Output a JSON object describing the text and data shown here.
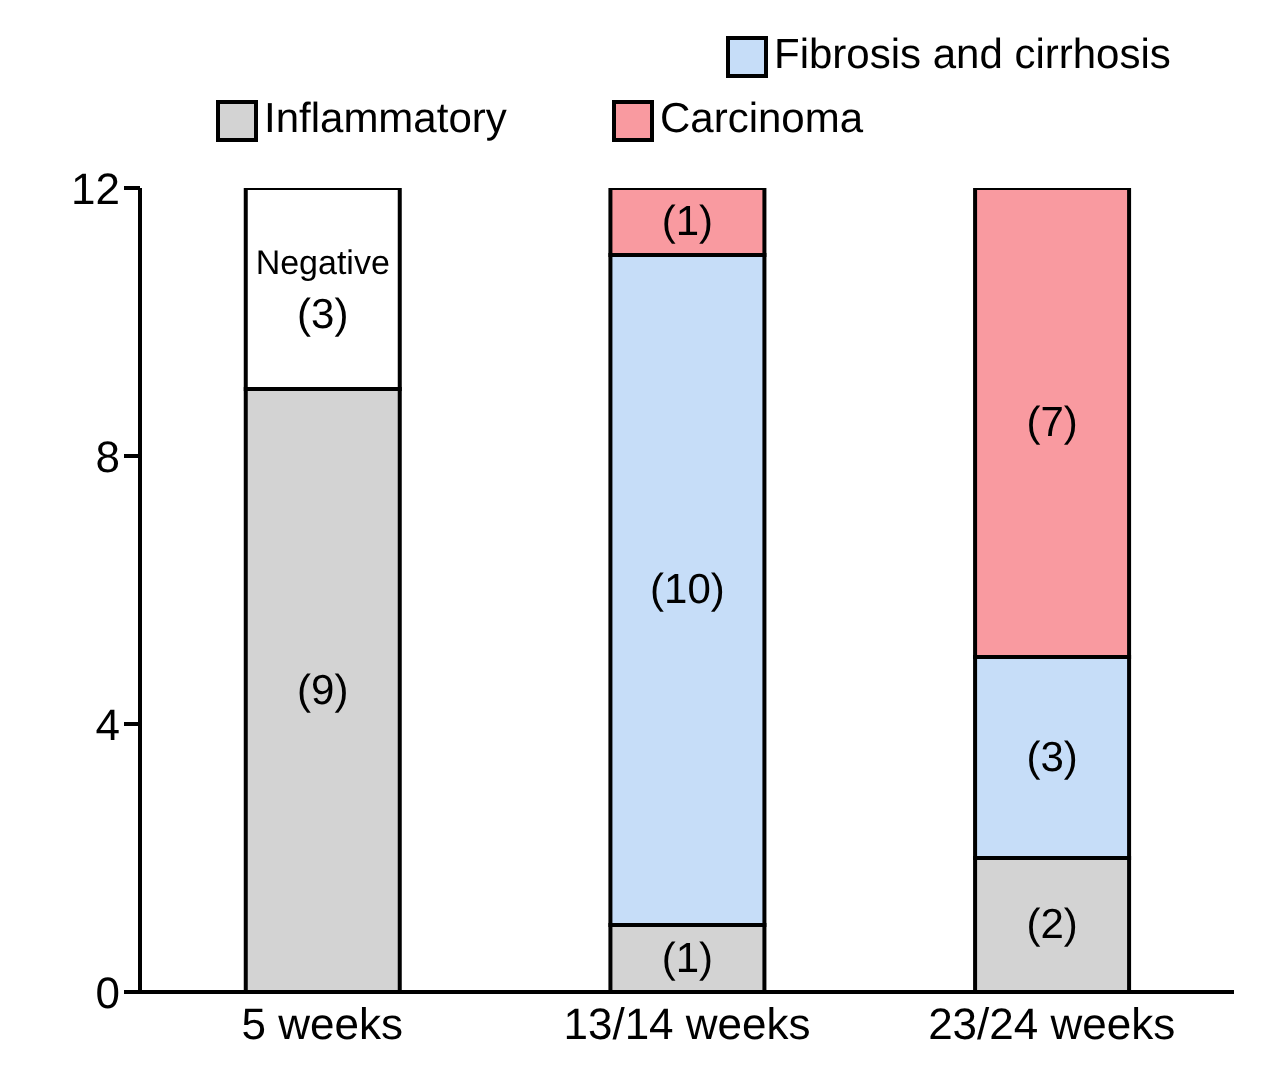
{
  "chart_data": {
    "type": "bar",
    "stacked": true,
    "categories": [
      "5 weeks",
      "13/14 weeks",
      "23/24 weeks"
    ],
    "ylim": [
      0,
      12
    ],
    "yticks": [
      0,
      4,
      8,
      12
    ],
    "grid": false,
    "legend": "top",
    "series": [
      {
        "name": "Inflammatory",
        "color": "#d3d3d3",
        "values": [
          9,
          1,
          2
        ],
        "value_labels": [
          "(9)",
          "(1)",
          "(2)"
        ]
      },
      {
        "name": "Fibrosis and cirrhosis",
        "color": "#c6ddf8",
        "values": [
          null,
          10,
          3
        ],
        "value_labels": [
          null,
          "(10)",
          "(3)"
        ]
      },
      {
        "name": "Carcinoma",
        "color": "#f99aa0",
        "values": [
          null,
          1,
          7
        ],
        "value_labels": [
          null,
          "(1)",
          "(7)"
        ]
      },
      {
        "color": "#ffffff",
        "values": [
          3,
          null,
          null
        ],
        "value_labels": [
          "Negative (3)",
          null,
          null
        ]
      }
    ]
  }
}
